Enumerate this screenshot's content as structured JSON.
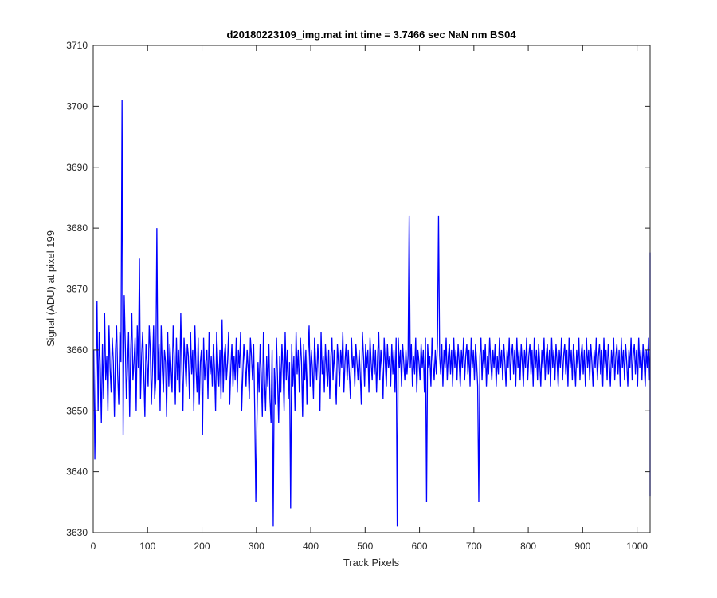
{
  "chart_data": {
    "type": "line",
    "title": "d20180223109_img.mat int time = 3.7466 sec  NaN nm BS04",
    "xlabel": "Track Pixels",
    "ylabel": "Signal (ADU) at pixel 199",
    "xlim": [
      0,
      1024
    ],
    "ylim": [
      3630,
      3710
    ],
    "xticks": [
      0,
      100,
      200,
      300,
      400,
      500,
      600,
      700,
      800,
      900,
      1000
    ],
    "yticks": [
      3630,
      3640,
      3650,
      3660,
      3670,
      3680,
      3690,
      3700,
      3710
    ],
    "xtick_labels": [
      "0",
      "100",
      "200",
      "300",
      "400",
      "500",
      "600",
      "700",
      "800",
      "900",
      "1000"
    ],
    "ytick_labels": [
      "3630",
      "3640",
      "3650",
      "3660",
      "3670",
      "3680",
      "3690",
      "3700",
      "3710"
    ],
    "grid": false,
    "line_color": "#0000FF",
    "axes_color": "#262626",
    "series": [
      {
        "x_start": 1,
        "x_step": 2,
        "values": [
          3660,
          3642,
          3655,
          3668,
          3650,
          3663,
          3657,
          3648,
          3661,
          3652,
          3666,
          3655,
          3659,
          3650,
          3664,
          3657,
          3653,
          3662,
          3658,
          3649,
          3660,
          3664,
          3656,
          3651,
          3663,
          3658,
          3701,
          3646,
          3669,
          3661,
          3652,
          3657,
          3663,
          3649,
          3660,
          3666,
          3655,
          3658,
          3662,
          3650,
          3664,
          3657,
          3675,
          3652,
          3659,
          3663,
          3656,
          3649,
          3661,
          3658,
          3654,
          3664,
          3660,
          3651,
          3657,
          3664,
          3652,
          3655,
          3680,
          3655,
          3661,
          3650,
          3664,
          3657,
          3653,
          3660,
          3658,
          3649,
          3663,
          3654,
          3661,
          3657,
          3653,
          3664,
          3659,
          3651,
          3662,
          3655,
          3660,
          3653,
          3666,
          3657,
          3650,
          3662,
          3658,
          3654,
          3661,
          3659,
          3652,
          3663,
          3656,
          3660,
          3650,
          3664,
          3657,
          3653,
          3662,
          3651,
          3658,
          3660,
          3646,
          3662,
          3655,
          3658,
          3660,
          3652,
          3663,
          3656,
          3659,
          3654,
          3661,
          3657,
          3650,
          3663,
          3658,
          3654,
          3660,
          3652,
          3665,
          3653,
          3659,
          3661,
          3655,
          3658,
          3663,
          3651,
          3657,
          3661,
          3654,
          3659,
          3655,
          3662,
          3653,
          3660,
          3657,
          3663,
          3650,
          3656,
          3661,
          3658,
          3654,
          3660,
          3657,
          3652,
          3662,
          3659,
          3655,
          3661,
          3650,
          3635,
          3648,
          3658,
          3653,
          3661,
          3656,
          3649,
          3663,
          3655,
          3650,
          3659,
          3654,
          3661,
          3652,
          3648,
          3660,
          3631,
          3657,
          3651,
          3662,
          3655,
          3648,
          3659,
          3653,
          3661,
          3657,
          3650,
          3663,
          3655,
          3660,
          3652,
          3658,
          3634,
          3661,
          3654,
          3659,
          3650,
          3663,
          3656,
          3660,
          3653,
          3662,
          3658,
          3649,
          3661,
          3655,
          3660,
          3651,
          3659,
          3664,
          3654,
          3660,
          3657,
          3652,
          3662,
          3658,
          3655,
          3661,
          3657,
          3650,
          3663,
          3656,
          3659,
          3653,
          3661,
          3657,
          3654,
          3660,
          3652,
          3659,
          3662,
          3655,
          3660,
          3656,
          3651,
          3661,
          3658,
          3654,
          3660,
          3657,
          3663,
          3653,
          3658,
          3661,
          3655,
          3660,
          3656,
          3652,
          3662,
          3657,
          3659,
          3654,
          3661,
          3658,
          3655,
          3660,
          3656,
          3651,
          3663,
          3659,
          3654,
          3661,
          3657,
          3660,
          3653,
          3662,
          3658,
          3655,
          3661,
          3656,
          3660,
          3653,
          3659,
          3663,
          3655,
          3660,
          3657,
          3652,
          3662,
          3658,
          3654,
          3661,
          3657,
          3659,
          3654,
          3661,
          3656,
          3660,
          3653,
          3662,
          3631,
          3662,
          3657,
          3660,
          3654,
          3661,
          3658,
          3655,
          3660,
          3656,
          3659,
          3682,
          3657,
          3661,
          3654,
          3659,
          3656,
          3662,
          3653,
          3660,
          3658,
          3655,
          3661,
          3657,
          3660,
          3653,
          3662,
          3635,
          3661,
          3657,
          3659,
          3654,
          3662,
          3658,
          3655,
          3660,
          3656,
          3661,
          3682,
          3659,
          3656,
          3661,
          3654,
          3660,
          3657,
          3662,
          3655,
          3659,
          3661,
          3656,
          3660,
          3654,
          3662,
          3657,
          3660,
          3655,
          3661,
          3658,
          3654,
          3660,
          3657,
          3662,
          3655,
          3659,
          3661,
          3656,
          3660,
          3654,
          3662,
          3657,
          3660,
          3655,
          3661,
          3658,
          3654,
          3635,
          3659,
          3662,
          3655,
          3660,
          3657,
          3661,
          3654,
          3659,
          3656,
          3662,
          3658,
          3655,
          3660,
          3657,
          3661,
          3654,
          3659,
          3656,
          3662,
          3657,
          3660,
          3655,
          3661,
          3658,
          3654,
          3660,
          3657,
          3662,
          3655,
          3659,
          3661,
          3656,
          3660,
          3654,
          3662,
          3657,
          3660,
          3655,
          3661,
          3658,
          3654,
          3660,
          3657,
          3662,
          3655,
          3659,
          3661,
          3656,
          3660,
          3654,
          3662,
          3657,
          3660,
          3655,
          3661,
          3658,
          3654,
          3660,
          3657,
          3662,
          3655,
          3659,
          3661,
          3656,
          3660,
          3654,
          3662,
          3657,
          3660,
          3655,
          3661,
          3658,
          3654,
          3660,
          3657,
          3662,
          3655,
          3659,
          3661,
          3656,
          3660,
          3654,
          3662,
          3657,
          3660,
          3655,
          3661,
          3658,
          3654,
          3660,
          3657,
          3662,
          3655,
          3659,
          3661,
          3656,
          3660,
          3654,
          3662,
          3657,
          3660,
          3655,
          3661,
          3658,
          3654,
          3660,
          3657,
          3662,
          3655,
          3659,
          3661,
          3656,
          3660,
          3654,
          3662,
          3657,
          3660,
          3655,
          3661,
          3658,
          3654,
          3660,
          3657,
          3662,
          3655,
          3659,
          3661,
          3656,
          3660,
          3654,
          3662,
          3657,
          3660,
          3655,
          3661,
          3658,
          3654,
          3660,
          3657,
          3662,
          3655,
          3659,
          3661,
          3656,
          3660,
          3654,
          3662,
          3657,
          3660,
          3655,
          3661,
          3658,
          3654,
          3660,
          3657,
          3662,
          3655,
          3659,
          3661,
          3656,
          3660,
          3654,
          3662,
          3636,
          3660,
          3655,
          3661,
          3658,
          3654,
          3660,
          3657,
          3662,
          3655,
          3659,
          3676
        ]
      }
    ]
  }
}
